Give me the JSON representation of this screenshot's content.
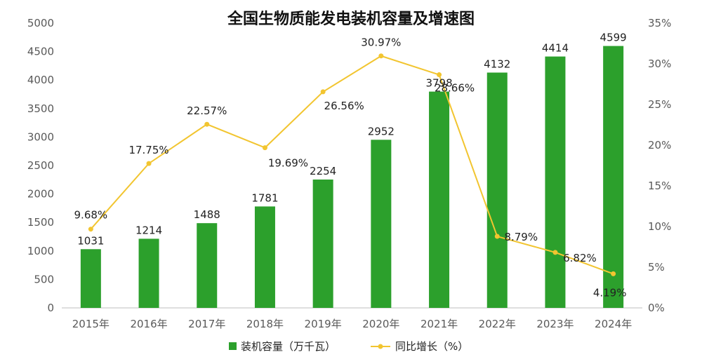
{
  "chart_data": {
    "type": "bar",
    "title": "全国生物质能发电装机容量及增速图",
    "categories": [
      "2015年",
      "2016年",
      "2017年",
      "2018年",
      "2019年",
      "2020年",
      "2021年",
      "2022年",
      "2023年",
      "2024年"
    ],
    "series": [
      {
        "name": "装机容量（万千瓦）",
        "type": "bar",
        "axis": "left",
        "color": "#2ca02c",
        "values": [
          1031,
          1214,
          1488,
          1781,
          2254,
          2952,
          3798,
          4132,
          4414,
          4599
        ],
        "labels": [
          "1031",
          "1214",
          "1488",
          "1781",
          "2254",
          "2952",
          "3798",
          "4132",
          "4414",
          "4599"
        ]
      },
      {
        "name": "同比增长（%）",
        "type": "line",
        "axis": "right",
        "color": "#f2c530",
        "values": [
          9.68,
          17.75,
          22.57,
          19.69,
          26.56,
          30.97,
          28.66,
          8.79,
          6.82,
          4.19
        ],
        "labels": [
          "9.68%",
          "17.75%",
          "22.57%",
          "19.69%",
          "26.56%",
          "30.97%",
          "28.66%",
          "8.79%",
          "6.82%",
          "4.19%"
        ]
      }
    ],
    "ylim_left": [
      0,
      5000
    ],
    "ylim_right": [
      0,
      35
    ],
    "yticks_left": [
      "0",
      "500",
      "1000",
      "1500",
      "2000",
      "2500",
      "3000",
      "3500",
      "4000",
      "4500",
      "5000"
    ],
    "yticks_right": [
      "0%",
      "5%",
      "10%",
      "15%",
      "20%",
      "25%",
      "30%",
      "35%"
    ],
    "grid": false,
    "legend_position": "bottom"
  }
}
